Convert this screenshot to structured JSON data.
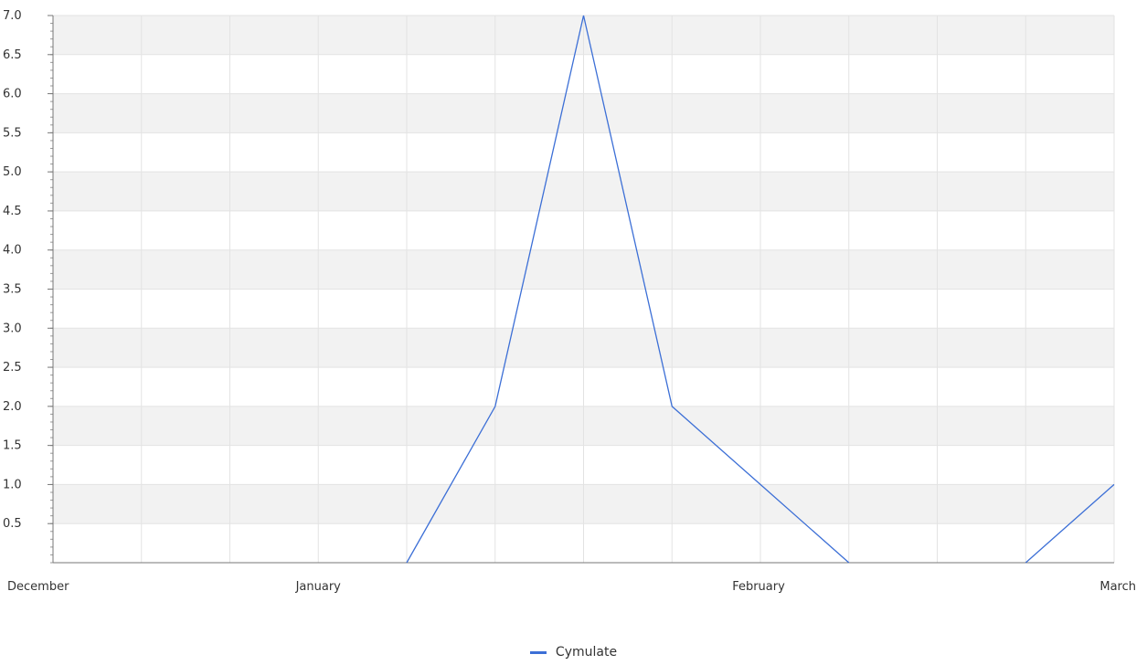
{
  "chart_data": {
    "type": "line",
    "ylim": [
      0,
      7.0
    ],
    "y_ticks": [
      "7.0",
      "6.5",
      "6.0",
      "5.5",
      "5.0",
      "4.5",
      "4.0",
      "3.5",
      "3.0",
      "2.5",
      "2.0",
      "1.5",
      "1.0",
      "0.5"
    ],
    "x_tick_labels": [
      {
        "label": "December",
        "x": 0
      },
      {
        "label": "January",
        "x": 3
      },
      {
        "label": "February",
        "x": 8
      },
      {
        "label": "March",
        "x": 12
      }
    ],
    "series": [
      {
        "name": "Cymulate",
        "color": "#3c6fd6",
        "points": [
          {
            "x": 4,
            "y": 0
          },
          {
            "x": 5,
            "y": 2
          },
          {
            "x": 6,
            "y": 7
          },
          {
            "x": 7,
            "y": 2
          },
          {
            "x": 8,
            "y": 1
          },
          {
            "x": 9,
            "y": 0
          },
          {
            "x": 11,
            "y": 0
          },
          {
            "x": 12,
            "y": 1
          }
        ]
      }
    ],
    "grid": true,
    "alternating_bands": true,
    "legend_position": "bottom-center"
  }
}
